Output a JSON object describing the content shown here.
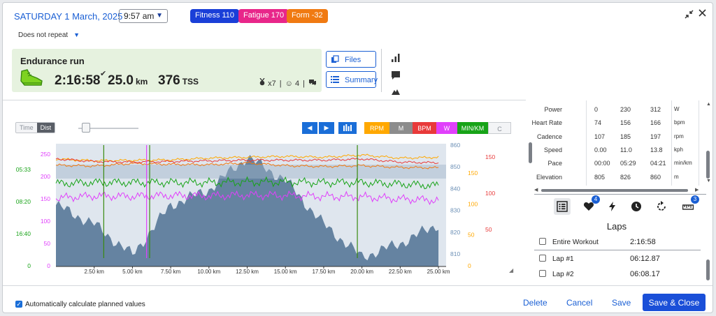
{
  "header": {
    "date_title": "SATURDAY 1 March, 2025",
    "time_value": "9:57 am",
    "repeat_label": "Does not repeat",
    "pills": [
      {
        "label": "Fitness 110",
        "color": "#1a3fd8"
      },
      {
        "label": "Fatigue 170",
        "color": "#e8268a"
      },
      {
        "label": "Form -32",
        "color": "#f07a12"
      }
    ],
    "icons": {
      "collapse": "collapse-icon",
      "close": "close-icon"
    }
  },
  "workout": {
    "title": "Endurance run",
    "duration": "2:16:58",
    "distance": "25.0",
    "distance_unit": "km",
    "tss": "376",
    "tss_unit": "TSS",
    "badge_count": "x7",
    "feel_count": "4",
    "sport_icon": "running-shoe-icon",
    "check_icon": "check-icon"
  },
  "side_buttons": {
    "files": "Files",
    "summary": "Summary"
  },
  "tools": [
    "bar-chart-icon",
    "comment-icon",
    "mountain-icon"
  ],
  "chart_controls": {
    "toggle": {
      "time": "Time",
      "dist": "Dist",
      "selected": "Dist"
    },
    "channels": [
      {
        "label": "RPM",
        "color": "#ffa800"
      },
      {
        "label": "M",
        "color": "#8c8c8c"
      },
      {
        "label": "BPM",
        "color": "#e83a3a"
      },
      {
        "label": "W",
        "color": "#e040fb"
      },
      {
        "label": "MIN/KM",
        "color": "#17a317"
      },
      {
        "label": "C",
        "color": "#c9ccd1"
      }
    ]
  },
  "chart_data": {
    "type": "area",
    "x": [
      0,
      2.5,
      5,
      7.5,
      10,
      12.5,
      15,
      17.5,
      20,
      22.5,
      25
    ],
    "x_ticks": [
      "2.50 km",
      "5.00 km",
      "7.50 km",
      "10.00 km",
      "12.50 km",
      "15.00 km",
      "17.50 km",
      "20.00 km",
      "22.50 km",
      "25.00 km"
    ],
    "elevation": [
      832,
      822,
      806,
      832,
      840,
      857,
      845,
      822,
      805,
      812,
      822
    ],
    "series": [
      {
        "values": [
          231,
          229,
          235,
          233,
          232,
          236,
          230,
          228,
          230,
          226,
          225
        ]
      },
      {
        "values": [
          226,
          222,
          223,
          224,
          228,
          230,
          232,
          230,
          235,
          228,
          230
        ]
      },
      {
        "values": [
          160,
          156,
          155,
          156,
          157,
          158,
          158,
          158,
          160,
          155,
          154
        ]
      },
      {
        "values": [
          184,
          186,
          186,
          186,
          186,
          187,
          187,
          186,
          186,
          183,
          180
        ]
      },
      {
        "values": [
          210,
          215,
          214,
          216,
          215,
          217,
          216,
          214,
          213,
          208,
          205
        ]
      }
    ],
    "axes": {
      "power": {
        "ticks": [
          "250",
          "200",
          "150",
          "100",
          "50",
          "0"
        ],
        "color": "#e040fb"
      },
      "pace": {
        "ticks": [
          "05:33",
          "08:20",
          "16:40",
          "0"
        ],
        "color": "#17a317"
      },
      "elevation": {
        "ticks": [
          "860",
          "850",
          "840",
          "830",
          "820",
          "810"
        ],
        "color": "#6b8fb5"
      },
      "cadence": {
        "ticks": [
          "150",
          "100",
          "50",
          "0"
        ],
        "color": "#ffa800"
      },
      "heart_rate": {
        "ticks": [
          "150",
          "100",
          "50"
        ],
        "color": "#e83a3a"
      }
    },
    "xlim": [
      0,
      25.5
    ],
    "grid": false
  },
  "data_rows": [
    {
      "name": "Power",
      "min": "0",
      "avg": "230",
      "max": "312",
      "unit": "W"
    },
    {
      "name": "Heart Rate",
      "min": "74",
      "avg": "156",
      "max": "166",
      "unit": "bpm"
    },
    {
      "name": "Cadence",
      "min": "107",
      "avg": "185",
      "max": "197",
      "unit": "rpm"
    },
    {
      "name": "Speed",
      "min": "0.00",
      "avg": "11.0",
      "max": "13.8",
      "unit": "kph"
    },
    {
      "name": "Pace",
      "min": "00:00",
      "avg": "05:29",
      "max": "04:21",
      "unit": "min/km"
    },
    {
      "name": "Elevation",
      "min": "805",
      "avg": "826",
      "max": "860",
      "unit": "m"
    }
  ],
  "lap_tabs": [
    {
      "icon": "list-icon",
      "active": true
    },
    {
      "icon": "heart-icon",
      "badge": "4"
    },
    {
      "icon": "bolt-icon"
    },
    {
      "icon": "clock-icon"
    },
    {
      "icon": "repeat-icon"
    },
    {
      "icon": "ruler-icon",
      "badge": "3"
    }
  ],
  "laps": {
    "title": "Laps",
    "rows": [
      {
        "name": "Entire Workout",
        "time": "2:16:58"
      },
      {
        "name": "Lap #1",
        "time": "06:12.87"
      },
      {
        "name": "Lap #2",
        "time": "06:08.17"
      }
    ]
  },
  "footer": {
    "auto_calc_label": "Automatically calculate planned values",
    "delete": "Delete",
    "cancel": "Cancel",
    "save": "Save",
    "save_close": "Save & Close"
  }
}
